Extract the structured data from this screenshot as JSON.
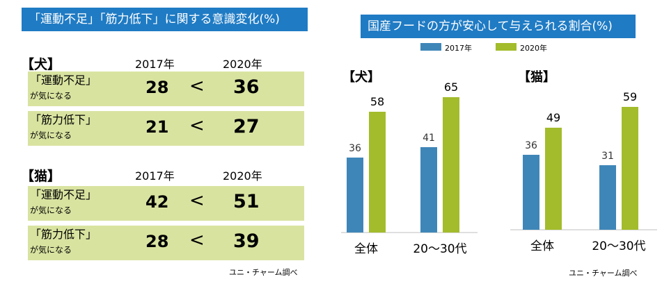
{
  "left": {
    "header": "「運動不足」「筋力低下」に関する意識変化(%)",
    "groups": [
      {
        "title": "【犬】",
        "year1": "2017年",
        "year2": "2020年",
        "rows": [
          {
            "label": "「運動不足」",
            "sub": "が気になる",
            "v2017": "28",
            "cmp": "<",
            "v2020": "36"
          },
          {
            "label": "「筋力低下」",
            "sub": "が気になる",
            "v2017": "21",
            "cmp": "<",
            "v2020": "27"
          }
        ]
      },
      {
        "title": "【猫】",
        "year1": "2017年",
        "year2": "2020年",
        "rows": [
          {
            "label": "「運動不足」",
            "sub": "が気になる",
            "v2017": "42",
            "cmp": "<",
            "v2020": "51"
          },
          {
            "label": "「筋力低下」",
            "sub": "が気になる",
            "v2017": "28",
            "cmp": "<",
            "v2020": "39"
          }
        ]
      }
    ],
    "source": "ユニ・チャーム調べ"
  },
  "right": {
    "header": "国産フードの方が安心して与えられる割合(%)",
    "legend": [
      {
        "name": "2017年",
        "color": "#3f86b8"
      },
      {
        "name": "2020年",
        "color": "#a2bc2b"
      }
    ],
    "source": "ユニ・チャーム調べ"
  },
  "chart_data": [
    {
      "type": "bar",
      "title": "【犬】",
      "categories": [
        "全体",
        "20〜30代"
      ],
      "series": [
        {
          "name": "2017年",
          "values": [
            36,
            41
          ]
        },
        {
          "name": "2020年",
          "values": [
            58,
            65
          ]
        }
      ]
    },
    {
      "type": "bar",
      "title": "【猫】",
      "categories": [
        "全体",
        "20〜30代"
      ],
      "series": [
        {
          "name": "2017年",
          "values": [
            36,
            31
          ]
        },
        {
          "name": "2020年",
          "values": [
            49,
            59
          ]
        }
      ]
    }
  ]
}
